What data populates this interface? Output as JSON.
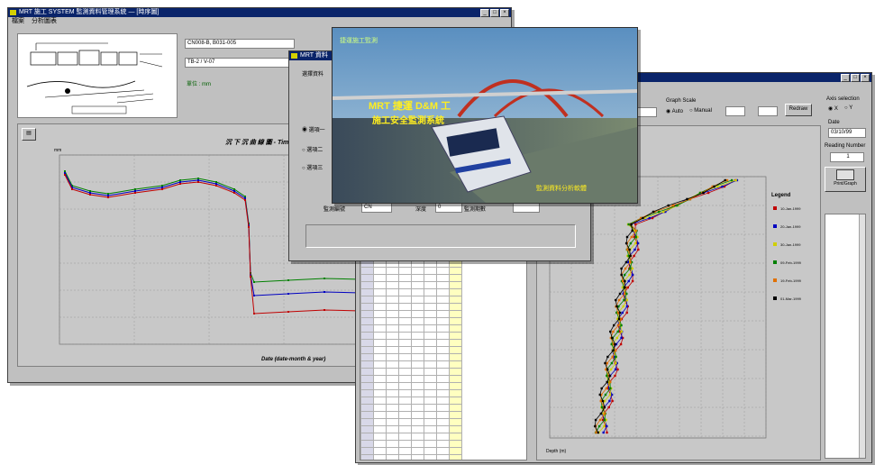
{
  "main_window": {
    "title": "MRT 施工 SYSTEM 監測資料管理系統 — [時序圖]",
    "menu": [
      "檔案",
      "分析圖表"
    ],
    "fields": [
      "CN008-B, B031-005",
      "TB-2 / V-07"
    ],
    "status_text": "單位 : mm",
    "chart": {
      "title": "沉 下 沉 曲 線 圖 - Time Hi",
      "xlabel": "Date (date-month & year)",
      "ylabel": "mm"
    }
  },
  "dialog": {
    "title": "MRT 資料",
    "opt_label": "選擇資料",
    "options": [
      "選項一",
      "選項二",
      "選項三"
    ],
    "fields": [
      {
        "label": "監測編號",
        "value": "CN"
      },
      {
        "label": "深度",
        "value": "0"
      },
      {
        "label": "監測期數",
        "value": ""
      }
    ]
  },
  "splash": {
    "top_text": "捷運施工監測",
    "line1": "MRT 捷運 D&M 工",
    "line2": "施工安全監測系統",
    "footer": "監測資料分析軟體"
  },
  "right_window": {
    "scale_label": "Graph Scale",
    "scale_options": [
      "Auto",
      "Manual"
    ],
    "scale_button": "Redraw",
    "axis_label": "Axis selection",
    "axis_options": [
      "X",
      "Y"
    ],
    "date_label": "Date",
    "date_value": "03/10/99",
    "reading_label": "Reading Number",
    "reading_value": "1",
    "print_button": "Print/Graph",
    "chart_xlabel": "Deflection (mm)",
    "chart_ylabel": "Depth (m)",
    "legend_title": "Legend",
    "legend_items": [
      {
        "label": "10-Jan-1999",
        "color": "#c00000",
        "marker": "square"
      },
      {
        "label": "20-Jan-1999",
        "color": "#0000c0",
        "marker": "triangle"
      },
      {
        "label": "30-Jan-1999",
        "color": "#d0d000",
        "marker": "circle"
      },
      {
        "label": "09-Feb-1999",
        "color": "#008000",
        "marker": "triangle"
      },
      {
        "label": "19-Feb-1999",
        "color": "#e07000",
        "marker": "diamond"
      },
      {
        "label": "01-Mar-1999",
        "color": "#000000",
        "marker": "star"
      }
    ]
  }
}
